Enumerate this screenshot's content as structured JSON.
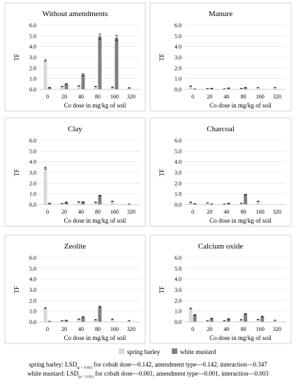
{
  "figure": {
    "legend": [
      {
        "label": "spring barley",
        "color": "#d9d9d9"
      },
      {
        "label": "white mustard",
        "color": "#808080"
      }
    ],
    "footnotes": [
      {
        "plant": "spring barley",
        "lsd": "LSD",
        "sub": "(p < 0.05)",
        "rest": " for cobalt dose—0.142, amendment type—0.142, interaction—0.347"
      },
      {
        "plant": "white mustard",
        "lsd": "LSD",
        "sub": "(p < 0.01)",
        "rest": " for cobalt dose—0.001, amendment type—0.001, interaction—0.003"
      }
    ]
  },
  "chart_data": [
    {
      "type": "bar",
      "title": "Without amendments",
      "ylabel": "TF",
      "xlabel": "Co dose in mg/kg of soil",
      "ylim": [
        0,
        6
      ],
      "yticks": [
        "0.0",
        "1.0",
        "2.0",
        "3.0",
        "4.0",
        "5.0",
        "6.0"
      ],
      "categories": [
        "0",
        "20",
        "40",
        "80",
        "160",
        "320"
      ],
      "series": [
        {
          "name": "spring barley",
          "values": [
            2.7,
            0.28,
            0.32,
            0.28,
            0.2,
            0.14
          ],
          "errors": [
            0.06,
            0.02,
            0.02,
            0.02,
            0.02,
            0.02
          ]
        },
        {
          "name": "white mustard",
          "values": [
            0.17,
            0.5,
            1.38,
            4.92,
            4.8,
            null
          ],
          "errors": [
            0.02,
            0.05,
            0.08,
            0.25,
            0.25,
            null
          ]
        }
      ]
    },
    {
      "type": "bar",
      "title": "Manure",
      "ylabel": "TF",
      "xlabel": "Co dose in mg/kg of soil",
      "ylim": [
        0,
        6
      ],
      "yticks": [
        "0.0",
        "1.0",
        "2.0",
        "3.0",
        "4.0",
        "5.0",
        "6.0"
      ],
      "categories": [
        "0",
        "20",
        "40",
        "80",
        "160",
        "320"
      ],
      "series": [
        {
          "name": "spring barley",
          "values": [
            0.3,
            0.08,
            0.05,
            0.1,
            0.16,
            0.18
          ],
          "errors": [
            0.02,
            0.01,
            0.01,
            0.01,
            0.01,
            0.01
          ]
        },
        {
          "name": "white mustard",
          "values": [
            0.04,
            0.1,
            0.13,
            0.18,
            null,
            null
          ],
          "errors": [
            0.01,
            0.01,
            0.01,
            0.01,
            null,
            null
          ]
        }
      ]
    },
    {
      "type": "bar",
      "title": "Clay",
      "ylabel": "TF",
      "xlabel": "Co dose in mg/kg of soil",
      "ylim": [
        0,
        6
      ],
      "yticks": [
        "0.0",
        "1.0",
        "2.0",
        "3.0",
        "4.0",
        "5.0",
        "6.0"
      ],
      "categories": [
        "0",
        "20",
        "40",
        "80",
        "160",
        "320"
      ],
      "series": [
        {
          "name": "spring barley",
          "values": [
            3.4,
            0.1,
            0.25,
            0.22,
            0.3,
            0.05
          ],
          "errors": [
            0.1,
            0.01,
            0.02,
            0.02,
            0.02,
            0.01
          ]
        },
        {
          "name": "white mustard",
          "values": [
            0.12,
            0.22,
            0.25,
            0.85,
            null,
            null
          ],
          "errors": [
            0.01,
            0.02,
            0.02,
            0.04,
            null,
            null
          ]
        }
      ]
    },
    {
      "type": "bar",
      "title": "Charcoal",
      "ylabel": "TF",
      "xlabel": "Co dose in mg/kg of soil",
      "ylim": [
        0,
        6
      ],
      "yticks": [
        "0.0",
        "1.0",
        "2.0",
        "3.0",
        "4.0",
        "5.0",
        "6.0"
      ],
      "categories": [
        "0",
        "20",
        "40",
        "80",
        "160",
        "320"
      ],
      "series": [
        {
          "name": "spring barley",
          "values": [
            0.22,
            0.15,
            0.05,
            0.12,
            0.3,
            null
          ],
          "errors": [
            0.02,
            0.01,
            0.01,
            0.01,
            0.02,
            null
          ]
        },
        {
          "name": "white mustard",
          "values": [
            0.08,
            0.05,
            0.12,
            0.93,
            null,
            null
          ],
          "errors": [
            0.01,
            0.01,
            0.01,
            0.03,
            null,
            null
          ]
        }
      ]
    },
    {
      "type": "bar",
      "title": "Zeolite",
      "ylabel": "TF",
      "xlabel": "Co dose in mg/kg of soil",
      "ylim": [
        0,
        6
      ],
      "yticks": [
        "0.0",
        "1.0",
        "2.0",
        "3.0",
        "4.0",
        "5.0",
        "6.0"
      ],
      "categories": [
        "0",
        "20",
        "40",
        "80",
        "160",
        "320"
      ],
      "series": [
        {
          "name": "spring barley",
          "values": [
            1.28,
            0.1,
            0.25,
            0.2,
            0.25,
            0.12
          ],
          "errors": [
            0.04,
            0.01,
            0.02,
            0.02,
            0.02,
            0.01
          ]
        },
        {
          "name": "white mustard",
          "values": [
            0.05,
            0.15,
            0.45,
            1.42,
            null,
            null
          ],
          "errors": [
            0.01,
            0.01,
            0.03,
            0.05,
            null,
            null
          ]
        }
      ]
    },
    {
      "type": "bar",
      "title": "Calcium oxide",
      "ylabel": "TF",
      "xlabel": "Co dose in mg/kg of soil",
      "ylim": [
        0,
        6
      ],
      "yticks": [
        "0.0",
        "1.0",
        "2.0",
        "3.0",
        "4.0",
        "5.0",
        "6.0"
      ],
      "categories": [
        "0",
        "20",
        "40",
        "80",
        "160",
        "320"
      ],
      "series": [
        {
          "name": "spring barley",
          "values": [
            1.25,
            0.12,
            0.1,
            0.2,
            0.22,
            0.15
          ],
          "errors": [
            0.05,
            0.01,
            0.01,
            0.02,
            0.02,
            0.01
          ]
        },
        {
          "name": "white mustard",
          "values": [
            0.65,
            0.32,
            0.28,
            0.75,
            0.5,
            null
          ],
          "errors": [
            0.04,
            0.02,
            0.02,
            0.04,
            0.03,
            null
          ]
        }
      ]
    }
  ]
}
